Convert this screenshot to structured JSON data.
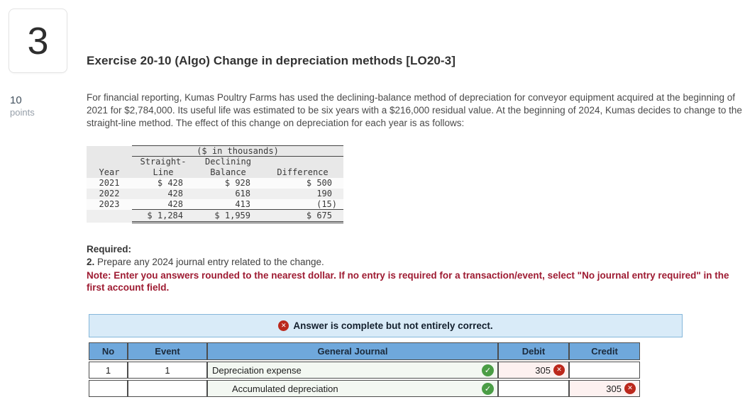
{
  "question": {
    "number": "3",
    "points_value": "10",
    "points_label": "points"
  },
  "exercise": {
    "title": "Exercise 20-10 (Algo) Change in depreciation methods [LO20-3]",
    "body": "For financial reporting, Kumas Poultry Farms has used the declining-balance method of depreciation for conveyor equipment acquired at the beginning of 2021 for $2,784,000. Its useful life was estimated to be six years with a $216,000 residual value. At the beginning of 2024, Kumas decides to change to the straight-line method. The effect of this change on depreciation for each year is as follows:"
  },
  "dep_table": {
    "caption": "($ in thousands)",
    "headers": {
      "year": "Year",
      "straight_line_1": "Straight-",
      "straight_line_2": "Line",
      "declining_1": "Declining",
      "declining_2": "Balance",
      "difference": "Difference"
    },
    "rows": [
      {
        "year": "2021",
        "straight_line": "$ 428",
        "declining_balance": "$ 928",
        "difference": "$ 500"
      },
      {
        "year": "2022",
        "straight_line": "428",
        "declining_balance": "618",
        "difference": "190"
      },
      {
        "year": "2023",
        "straight_line": "428",
        "declining_balance": "413",
        "difference": "(15)"
      }
    ],
    "totals": {
      "straight_line": "$ 1,284",
      "declining_balance": "$ 1,959",
      "difference": "$ 675"
    }
  },
  "required": {
    "label": "Required:",
    "item_number": "2.",
    "item_text": "Prepare any 2024 journal entry related to the change.",
    "note": "Note: Enter you answers rounded to the nearest dollar. If no entry is required for a transaction/event, select \"No journal entry required\" in the first account field."
  },
  "banner": {
    "text": "Answer is complete but not entirely correct."
  },
  "journal": {
    "headers": {
      "no": "No",
      "event": "Event",
      "general_journal": "General Journal",
      "debit": "Debit",
      "credit": "Credit"
    },
    "rows": [
      {
        "no": "1",
        "event": "1",
        "account": "Depreciation expense",
        "debit": "305",
        "credit": ""
      },
      {
        "no": "",
        "event": "",
        "account": "Accumulated depreciation",
        "debit": "",
        "credit": "305"
      }
    ]
  },
  "icons": {
    "check": "✓",
    "cross": "✕"
  },
  "colors": {
    "journal_header_blue": "#6fa8dc",
    "banner_background": "#d9ebf8",
    "banner_border": "#85b7da",
    "error_red": "#b02318",
    "success_green": "#4a9d45",
    "note_red": "#9e1b32",
    "error_cell_pink": "#fdf1f0",
    "account_cell_green": "#f3f8f2"
  }
}
